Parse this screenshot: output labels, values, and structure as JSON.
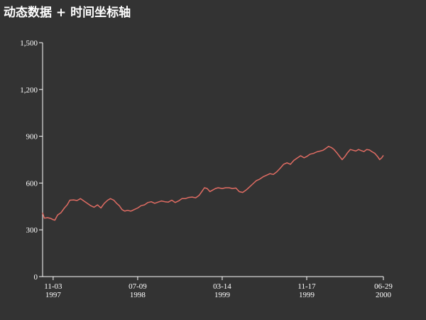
{
  "title": "动态数据 + 时间坐标轴",
  "colors": {
    "background": "#333333",
    "text": "#ffffff",
    "series": "#e06c63"
  },
  "chart_data": {
    "type": "line",
    "title": "动态数据 + 时间坐标轴",
    "xlabel": "",
    "ylabel": "",
    "ylim": [
      0,
      1500
    ],
    "yticks": [
      0,
      300,
      600,
      900,
      1200,
      1500
    ],
    "ytick_labels": [
      "0",
      "300",
      "600",
      "900",
      "1,200",
      "1,500"
    ],
    "xlim": [
      "1997-10-03",
      "2000-06-29"
    ],
    "xticks": [
      {
        "date": "1997-11-03",
        "label_top": "11-03",
        "label_bottom": "1997"
      },
      {
        "date": "1998-07-09",
        "label_top": "07-09",
        "label_bottom": "1998"
      },
      {
        "date": "1999-03-14",
        "label_top": "03-14",
        "label_bottom": "1999"
      },
      {
        "date": "1999-11-17",
        "label_top": "11-17",
        "label_bottom": "1999"
      },
      {
        "date": "2000-06-29",
        "label_top": "06-29",
        "label_bottom": "2000"
      }
    ],
    "grid": false,
    "series": [
      {
        "color": "#e06c63",
        "points": [
          [
            "1997-10-03",
            410
          ],
          [
            "1997-10-08",
            375
          ],
          [
            "1997-10-18",
            378
          ],
          [
            "1997-10-28",
            372
          ],
          [
            "1997-11-03",
            365
          ],
          [
            "1997-11-08",
            362
          ],
          [
            "1997-11-16",
            395
          ],
          [
            "1997-11-26",
            410
          ],
          [
            "1997-12-06",
            440
          ],
          [
            "1997-12-14",
            460
          ],
          [
            "1997-12-22",
            490
          ],
          [
            "1998-01-02",
            492
          ],
          [
            "1998-01-12",
            488
          ],
          [
            "1998-01-22",
            500
          ],
          [
            "1998-02-01",
            485
          ],
          [
            "1998-02-11",
            470
          ],
          [
            "1998-02-21",
            455
          ],
          [
            "1998-03-03",
            445
          ],
          [
            "1998-03-13",
            460
          ],
          [
            "1998-03-23",
            440
          ],
          [
            "1998-04-02",
            470
          ],
          [
            "1998-04-12",
            490
          ],
          [
            "1998-04-20",
            500
          ],
          [
            "1998-04-30",
            490
          ],
          [
            "1998-05-08",
            470
          ],
          [
            "1998-05-16",
            455
          ],
          [
            "1998-05-24",
            430
          ],
          [
            "1998-06-01",
            420
          ],
          [
            "1998-06-09",
            425
          ],
          [
            "1998-06-19",
            420
          ],
          [
            "1998-06-29",
            430
          ],
          [
            "1998-07-09",
            440
          ],
          [
            "1998-07-19",
            455
          ],
          [
            "1998-07-29",
            460
          ],
          [
            "1998-08-08",
            475
          ],
          [
            "1998-08-18",
            480
          ],
          [
            "1998-08-28",
            470
          ],
          [
            "1998-09-07",
            478
          ],
          [
            "1998-09-17",
            485
          ],
          [
            "1998-09-27",
            480
          ],
          [
            "1998-10-07",
            478
          ],
          [
            "1998-10-17",
            490
          ],
          [
            "1998-10-27",
            475
          ],
          [
            "1998-11-06",
            485
          ],
          [
            "1998-11-16",
            500
          ],
          [
            "1998-11-26",
            500
          ],
          [
            "1998-12-06",
            508
          ],
          [
            "1998-12-16",
            510
          ],
          [
            "1998-12-26",
            505
          ],
          [
            "1999-01-05",
            520
          ],
          [
            "1999-01-13",
            545
          ],
          [
            "1999-01-21",
            570
          ],
          [
            "1999-01-29",
            565
          ],
          [
            "1999-02-06",
            545
          ],
          [
            "1999-02-14",
            555
          ],
          [
            "1999-02-22",
            565
          ],
          [
            "1999-03-02",
            570
          ],
          [
            "1999-03-14",
            565
          ],
          [
            "1999-03-24",
            570
          ],
          [
            "1999-04-03",
            570
          ],
          [
            "1999-04-13",
            565
          ],
          [
            "1999-04-23",
            568
          ],
          [
            "1999-05-03",
            545
          ],
          [
            "1999-05-13",
            540
          ],
          [
            "1999-05-23",
            555
          ],
          [
            "1999-06-02",
            575
          ],
          [
            "1999-06-12",
            595
          ],
          [
            "1999-06-22",
            615
          ],
          [
            "1999-07-02",
            625
          ],
          [
            "1999-07-12",
            640
          ],
          [
            "1999-07-22",
            650
          ],
          [
            "1999-08-01",
            660
          ],
          [
            "1999-08-11",
            655
          ],
          [
            "1999-08-21",
            672
          ],
          [
            "1999-08-31",
            695
          ],
          [
            "1999-09-10",
            720
          ],
          [
            "1999-09-20",
            730
          ],
          [
            "1999-09-30",
            720
          ],
          [
            "1999-10-10",
            745
          ],
          [
            "1999-10-20",
            760
          ],
          [
            "1999-10-30",
            775
          ],
          [
            "1999-11-09",
            762
          ],
          [
            "1999-11-17",
            770
          ],
          [
            "1999-11-27",
            785
          ],
          [
            "1999-12-07",
            790
          ],
          [
            "1999-12-17",
            800
          ],
          [
            "1999-12-27",
            805
          ],
          [
            "2000-01-04",
            810
          ],
          [
            "2000-01-12",
            822
          ],
          [
            "2000-01-20",
            835
          ],
          [
            "2000-01-28",
            828
          ],
          [
            "2000-02-05",
            815
          ],
          [
            "2000-02-13",
            795
          ],
          [
            "2000-02-21",
            772
          ],
          [
            "2000-02-29",
            750
          ],
          [
            "2000-03-08",
            770
          ],
          [
            "2000-03-16",
            795
          ],
          [
            "2000-03-24",
            815
          ],
          [
            "2000-04-01",
            810
          ],
          [
            "2000-04-09",
            805
          ],
          [
            "2000-04-17",
            815
          ],
          [
            "2000-04-25",
            808
          ],
          [
            "2000-05-03",
            802
          ],
          [
            "2000-05-11",
            815
          ],
          [
            "2000-05-19",
            812
          ],
          [
            "2000-05-27",
            800
          ],
          [
            "2000-06-04",
            790
          ],
          [
            "2000-06-12",
            770
          ],
          [
            "2000-06-18",
            750
          ],
          [
            "2000-06-24",
            762
          ],
          [
            "2000-06-29",
            778
          ]
        ]
      }
    ]
  }
}
